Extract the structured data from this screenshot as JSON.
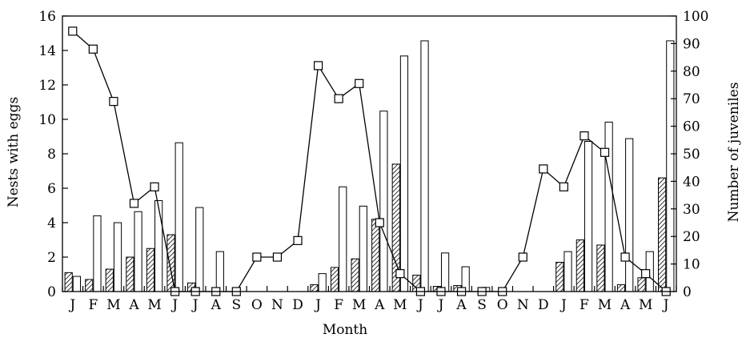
{
  "chart_data": {
    "type": "bar",
    "xlabel": "Month",
    "ylabel_left": "Nests with eggs",
    "ylabel_right": "Number of juveniles",
    "ylim_left": [
      0,
      16
    ],
    "ylim_right": [
      0,
      100
    ],
    "yticks_left": [
      "0",
      "2",
      "4",
      "6",
      "8",
      "10",
      "12",
      "14",
      "16"
    ],
    "yticks_right": [
      "0",
      "10",
      "20",
      "30",
      "40",
      "50",
      "60",
      "70",
      "80",
      "90",
      "100"
    ],
    "categories": [
      "J",
      "F",
      "M",
      "A",
      "M",
      "J",
      "J",
      "A",
      "S",
      "O",
      "N",
      "D",
      "J",
      "F",
      "M",
      "A",
      "M",
      "J",
      "J",
      "A",
      "S",
      "O",
      "N",
      "D",
      "J",
      "F",
      "M",
      "A",
      "M",
      "J"
    ],
    "series": [
      {
        "style": "hatched",
        "axis": "left",
        "values": [
          1.1,
          0.7,
          1.3,
          2.0,
          2.5,
          3.3,
          0.5,
          0,
          0,
          0,
          0,
          0,
          0.4,
          1.4,
          1.9,
          4.2,
          7.4,
          0.95,
          0.3,
          0.35,
          0,
          0,
          0,
          0,
          1.7,
          3.0,
          2.7,
          0.4,
          0.8,
          6.6
        ]
      },
      {
        "style": "open",
        "axis": "right",
        "values": [
          5.5,
          27.5,
          25,
          29,
          33,
          54,
          30.5,
          14.5,
          0,
          0,
          0,
          0,
          6.5,
          38,
          31,
          65.5,
          85.5,
          91,
          14,
          9,
          1.5,
          0,
          0,
          0,
          14.5,
          54.5,
          61.5,
          55.5,
          14.5,
          91
        ]
      },
      {
        "style": "line-square",
        "axis": "right",
        "values": [
          94.5,
          88,
          69,
          32,
          38,
          0,
          0,
          0,
          0,
          12.5,
          12.5,
          18.5,
          82,
          70,
          75.5,
          25,
          6.5,
          0,
          0,
          0,
          0,
          0,
          12.5,
          44.5,
          38,
          56.5,
          50.5,
          12.5,
          6.5,
          0
        ]
      }
    ],
    "colors": {
      "stroke": "#000000",
      "fill": "#ffffff"
    }
  }
}
